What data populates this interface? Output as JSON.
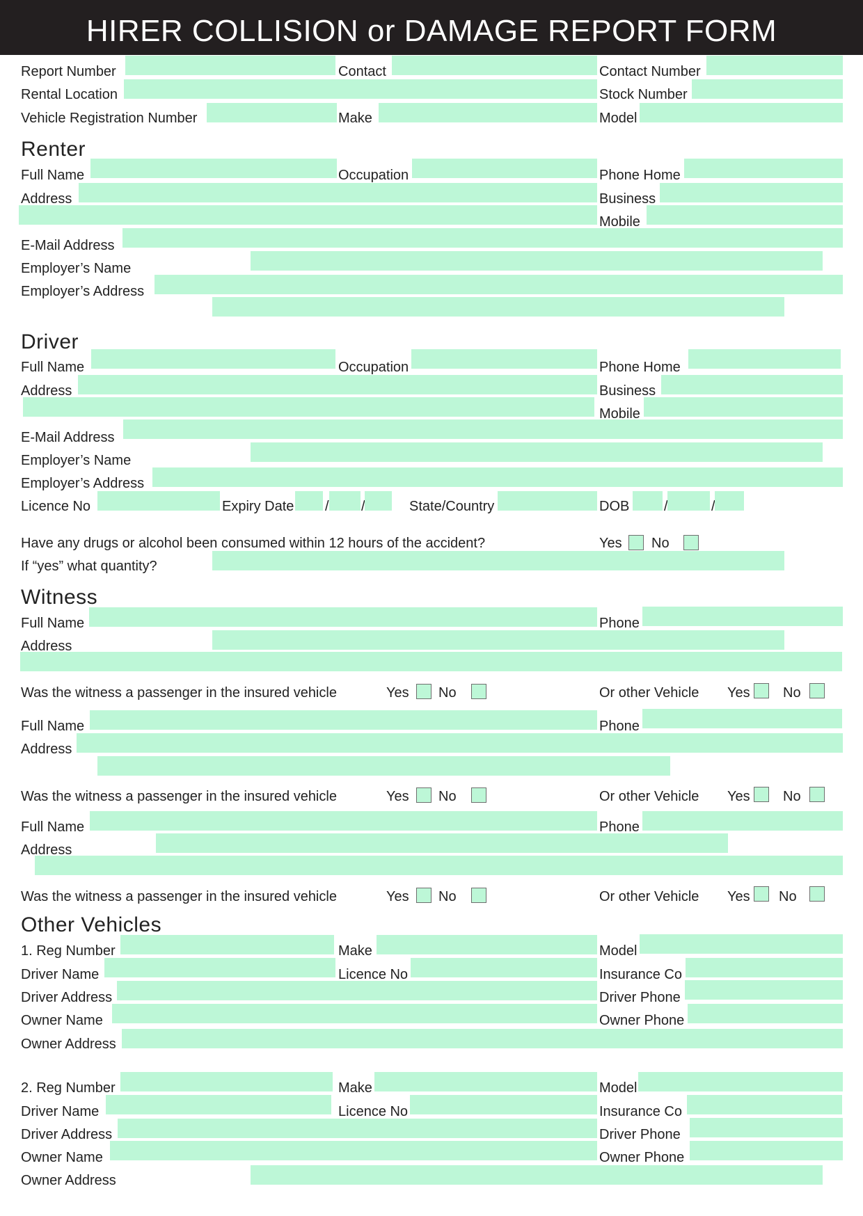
{
  "title": "HIRER COLLISION or DAMAGE REPORT FORM",
  "top": {
    "report_number": "Report  Number",
    "contact": "Contact",
    "contact_number": "Contact Number",
    "rental_location": "Rental Location",
    "stock_number": "Stock Number",
    "vehicle_registration_number": "Vehicle Registration Number",
    "make": "Make",
    "model": "Model"
  },
  "renter": {
    "heading": "Renter",
    "full_name": "Full Name",
    "occupation": "Occupation",
    "phone_home": "Phone Home",
    "address": "Address",
    "business": "Business",
    "mobile": "Mobile",
    "email": "E-Mail Address",
    "employer_name": "Employer’s Name",
    "employer_address": "Employer’s Address"
  },
  "driver": {
    "heading": "Driver",
    "full_name": "Full Name",
    "occupation": "Occupation",
    "phone_home": "Phone Home",
    "address": "Address",
    "business": "Business",
    "mobile": "Mobile",
    "email": "E-Mail Address",
    "employer_name": "Employer’s Name",
    "employer_address": "Employer’s Address",
    "licence_no": "Licence No",
    "expiry_date": "Expiry Date",
    "state_country": "State/Country",
    "dob": "DOB",
    "slash": "/",
    "drugs_question": "Have any drugs or alcohol been consumed within 12 hours of the accident?",
    "yes": "Yes",
    "no": "No",
    "quantity_question": "If “yes” what quantity?"
  },
  "witness": {
    "heading": "Witness",
    "full_name": "Full Name",
    "phone": "Phone",
    "address": "Address",
    "passenger_question": "Was the witness a passenger in the insured vehicle",
    "other_vehicle": "Or other Vehicle",
    "yes": "Yes",
    "no": "No"
  },
  "other_vehicles": {
    "heading": "Other Vehicles",
    "reg_number_1": "1. Reg Number",
    "reg_number_2": "2. Reg Number",
    "make": "Make",
    "model": "Model",
    "driver_name": "Driver Name",
    "licence_no": "Licence No",
    "insurance_co": "Insurance Co",
    "driver_address": "Driver Address",
    "driver_phone": "Driver Phone",
    "owner_name": "Owner Name",
    "owner_phone": "Owner Phone",
    "owner_address": "Owner Address"
  },
  "colors": {
    "header_bg": "#231f20",
    "field_bg": "#bdf7d7",
    "text": "#222222"
  }
}
